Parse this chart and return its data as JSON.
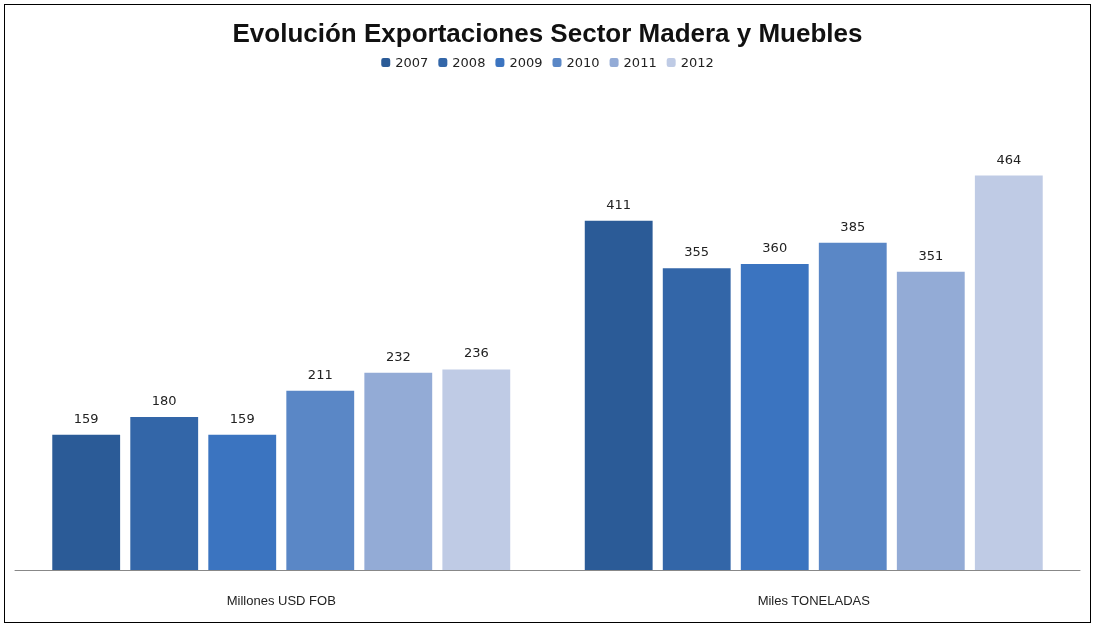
{
  "chart_data": {
    "type": "bar",
    "title": "Evolución Exportaciones Sector Madera y Muebles",
    "categories": [
      "Millones USD FOB",
      "Miles TONELADAS"
    ],
    "series": [
      {
        "name": "2007",
        "color": "#2b5b97",
        "values": [
          159,
          411
        ]
      },
      {
        "name": "2008",
        "color": "#3366a8",
        "values": [
          180,
          355
        ]
      },
      {
        "name": "2009",
        "color": "#3b74c0",
        "values": [
          159,
          360
        ]
      },
      {
        "name": "2010",
        "color": "#5a87c6",
        "values": [
          211,
          385
        ]
      },
      {
        "name": "2011",
        "color": "#93abd6",
        "values": [
          232,
          351
        ]
      },
      {
        "name": "2012",
        "color": "#bfcbe5",
        "values": [
          236,
          464
        ]
      }
    ],
    "data_labels": true,
    "legend": "top"
  }
}
